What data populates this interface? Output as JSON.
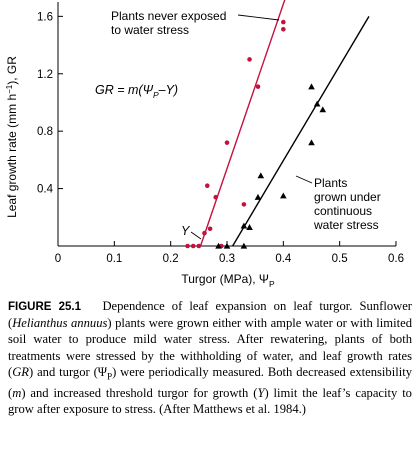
{
  "chart_data": {
    "type": "scatter",
    "xlabel": "Turgor (MPa), Ψ",
    "xlabel_sub": "P",
    "ylabel": "Leaf growth rate (mm h",
    "ylabel_sup": "−1",
    "ylabel_tail": "), GR",
    "xlim": [
      0,
      0.6
    ],
    "ylim": [
      0,
      1.7
    ],
    "x_ticks": [
      0,
      0.1,
      0.2,
      0.3,
      0.4,
      0.5,
      0.6
    ],
    "x_tick_labels": [
      "0",
      "0.1",
      "0.2",
      "0.3",
      "0.4",
      "0.5",
      "0.6"
    ],
    "y_ticks": [
      0.4,
      0.8,
      1.2,
      1.6
    ],
    "y_tick_labels": [
      "0.4",
      "0.8",
      "1.2",
      "1.6"
    ],
    "equation": {
      "prefix": "GR = m(Ψ",
      "sub": "P",
      "suffix": "–Y)"
    },
    "threshold_label": "Y",
    "series": [
      {
        "name": "Plants never exposed to water stress",
        "label_lines": [
          "Plants never exposed",
          "to water stress"
        ],
        "marker": "circle",
        "color": "#c4123f",
        "points": [
          {
            "x": 0.23,
            "y": 0.0
          },
          {
            "x": 0.24,
            "y": 0.0
          },
          {
            "x": 0.25,
            "y": 0.0
          },
          {
            "x": 0.26,
            "y": 0.09
          },
          {
            "x": 0.265,
            "y": 0.42
          },
          {
            "x": 0.27,
            "y": 0.12
          },
          {
            "x": 0.28,
            "y": 0.34
          },
          {
            "x": 0.29,
            "y": 0.0
          },
          {
            "x": 0.3,
            "y": 0.72
          },
          {
            "x": 0.33,
            "y": 0.29
          },
          {
            "x": 0.34,
            "y": 1.3
          },
          {
            "x": 0.355,
            "y": 1.11
          },
          {
            "x": 0.4,
            "y": 1.51
          },
          {
            "x": 0.4,
            "y": 1.56
          }
        ],
        "fit": {
          "x": [
            0.253,
            0.403
          ],
          "y": [
            0.0,
            1.72
          ]
        }
      },
      {
        "name": "Plants grown under continuous water stress",
        "label_lines": [
          "Plants",
          "grown under",
          "continuous",
          "water stress"
        ],
        "marker": "triangle",
        "color": "#000000",
        "points": [
          {
            "x": 0.285,
            "y": 0.0
          },
          {
            "x": 0.3,
            "y": 0.0
          },
          {
            "x": 0.33,
            "y": 0.0
          },
          {
            "x": 0.33,
            "y": 0.14
          },
          {
            "x": 0.34,
            "y": 0.13
          },
          {
            "x": 0.355,
            "y": 0.34
          },
          {
            "x": 0.36,
            "y": 0.49
          },
          {
            "x": 0.4,
            "y": 0.35
          },
          {
            "x": 0.45,
            "y": 0.72
          },
          {
            "x": 0.45,
            "y": 1.11
          },
          {
            "x": 0.46,
            "y": 0.99
          },
          {
            "x": 0.47,
            "y": 0.95
          }
        ],
        "fit": {
          "x": [
            0.31,
            0.552
          ],
          "y": [
            0.0,
            1.6
          ]
        }
      }
    ]
  },
  "caption": {
    "label": "FIGURE 25.1",
    "text": "Dependence of leaf expansion on leaf turgor. Sunflower (Helianthus annuus) plants were grown either with ample water or with limited soil water to produce mild water stress. After rewatering, plants of both treatments were stressed by the withholding of water, and leaf growth rates (GR) and turgor (ΨP) were periodically measured. Both decreased extensibility (m) and increased threshold turgor for growth (Y) limit the leaf’s capacity to grow after exposure to stress. (After Matthews et al. 1984.)"
  }
}
